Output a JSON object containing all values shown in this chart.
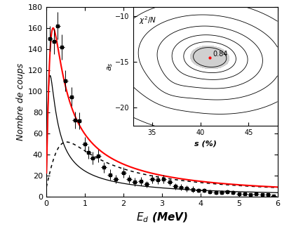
{
  "main": {
    "xlim": [
      0,
      6
    ],
    "ylim": [
      0,
      180
    ],
    "xlabel": "$E_d$ (MeV)",
    "ylabel": "Nombre de coups",
    "xticks": [
      0,
      1,
      2,
      3,
      4,
      5,
      6
    ],
    "yticks": [
      0,
      20,
      40,
      60,
      80,
      100,
      120,
      140,
      160,
      180
    ]
  },
  "inset": {
    "xlim": [
      33,
      48
    ],
    "ylim": [
      -22,
      -9
    ],
    "xlabel": "s (%)",
    "ylabel": "$a_s$",
    "title": "$\\chi^2/N$",
    "xticks": [
      35,
      40,
      45
    ],
    "yticks": [
      -20,
      -15,
      -10
    ],
    "best_x": 41.0,
    "best_y": -14.5,
    "best_label": "0.84"
  },
  "exp_x": [
    0.1,
    0.2,
    0.3,
    0.4,
    0.5,
    0.65,
    0.75,
    0.85,
    1.0,
    1.1,
    1.2,
    1.35,
    1.5,
    1.65,
    1.8,
    2.0,
    2.15,
    2.3,
    2.45,
    2.6,
    2.75,
    2.9,
    3.05,
    3.2,
    3.35,
    3.5,
    3.65,
    3.8,
    3.95,
    4.1,
    4.25,
    4.4,
    4.55,
    4.7,
    4.85,
    5.0,
    5.15,
    5.3,
    5.45,
    5.6,
    5.75,
    5.9
  ],
  "exp_y": [
    150,
    147,
    162,
    142,
    110,
    95,
    73,
    72,
    50,
    42,
    37,
    39,
    28,
    21,
    17,
    23,
    17,
    14,
    15,
    12,
    17,
    16,
    17,
    14,
    10,
    9,
    8,
    7,
    6,
    6,
    5,
    4,
    4,
    5,
    4,
    3,
    3,
    2,
    3,
    2,
    2,
    1
  ],
  "exp_xerr": 0.07,
  "exp_yerr": [
    12,
    12,
    13,
    12,
    10,
    9,
    8,
    8,
    7,
    6,
    6,
    6,
    5,
    5,
    4,
    5,
    4,
    4,
    4,
    3,
    4,
    4,
    4,
    3,
    3,
    3,
    3,
    3,
    2,
    2,
    2,
    2,
    2,
    2,
    2,
    1.5,
    1.5,
    1.5,
    1.5,
    1.5,
    1.5,
    1.5
  ]
}
